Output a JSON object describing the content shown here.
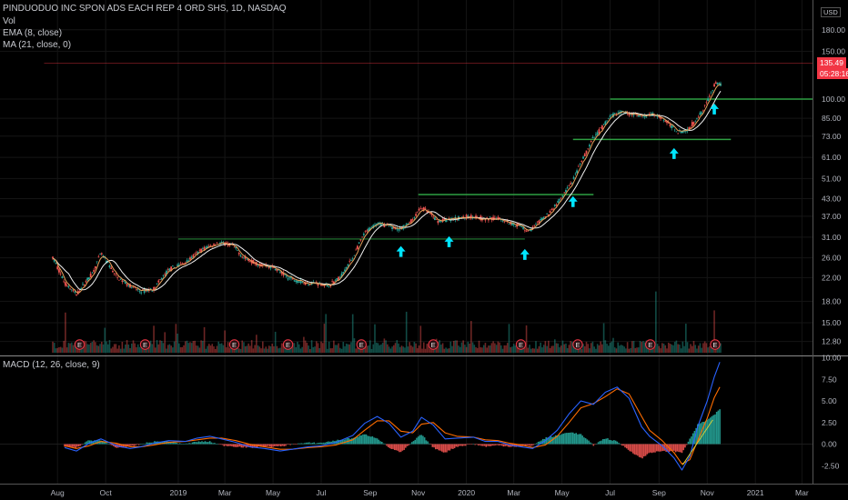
{
  "header": {
    "title": "PINDUODUO INC SPON ADS EACH REP 4 ORD SHS, 1D, NASDAQ",
    "vol_label": "Vol",
    "ema_label": "EMA (8, close)",
    "ma_label": "MA (21, close, 0)",
    "currency": "USD"
  },
  "price_badge": {
    "value": "135.49",
    "countdown": "05:28:16"
  },
  "macd_label": "MACD (12, 26, close, 9)",
  "colors": {
    "up": "#26a69a",
    "down": "#ef5350",
    "ema": "#e8a05a",
    "ma": "#f0f0f0",
    "macd": "#2962ff",
    "signal": "#ff6d00",
    "level": "#2ea043",
    "arrow": "#00e5ff",
    "badge": "#f23645",
    "trend": "#d4d038"
  },
  "chart_data": [
    {
      "type": "candlestick",
      "title": "PINDUODUO INC SPON ADS EACH REP 4 ORD SHS, 1D, NASDAQ",
      "y_scale": "log",
      "yticks": [
        "12.80",
        "15.00",
        "18.00",
        "22.00",
        "26.00",
        "31.00",
        "37.00",
        "43.00",
        "51.00",
        "61.00",
        "73.00",
        "85.00",
        "100.00",
        "150.00",
        "180.00"
      ],
      "xticks": [
        "Aug",
        "Oct",
        "2019",
        "Mar",
        "May",
        "Jul",
        "Sep",
        "Nov",
        "2020",
        "Mar",
        "May",
        "Jul",
        "Sep",
        "Nov",
        "2021",
        "Mar"
      ],
      "price_path": [
        [
          "2018-07-26",
          26
        ],
        [
          "2018-08-10",
          21
        ],
        [
          "2018-08-25",
          19
        ],
        [
          "2018-09-15",
          23
        ],
        [
          "2018-09-25",
          27
        ],
        [
          "2018-10-15",
          22
        ],
        [
          "2018-11-01",
          20.5
        ],
        [
          "2018-11-15",
          19.5
        ],
        [
          "2018-12-01",
          20
        ],
        [
          "2018-12-20",
          23.5
        ],
        [
          "2019-01-10",
          25
        ],
        [
          "2019-02-01",
          28
        ],
        [
          "2019-02-20",
          29.5
        ],
        [
          "2019-03-10",
          29
        ],
        [
          "2019-03-25",
          26
        ],
        [
          "2019-04-15",
          24.5
        ],
        [
          "2019-05-01",
          24
        ],
        [
          "2019-05-20",
          22
        ],
        [
          "2019-06-10",
          21
        ],
        [
          "2019-06-25",
          21
        ],
        [
          "2019-07-10",
          20.5
        ],
        [
          "2019-07-25",
          22
        ],
        [
          "2019-08-10",
          26
        ],
        [
          "2019-08-25",
          32
        ],
        [
          "2019-09-10",
          35
        ],
        [
          "2019-09-25",
          34
        ],
        [
          "2019-10-10",
          33
        ],
        [
          "2019-10-25",
          36
        ],
        [
          "2019-11-05",
          40
        ],
        [
          "2019-11-15",
          38
        ],
        [
          "2019-11-25",
          35.5
        ],
        [
          "2019-12-10",
          36
        ],
        [
          "2019-12-25",
          36.5
        ],
        [
          "2020-01-10",
          37
        ],
        [
          "2020-01-25",
          36
        ],
        [
          "2020-02-10",
          36.5
        ],
        [
          "2020-02-25",
          35
        ],
        [
          "2020-03-10",
          34
        ],
        [
          "2020-03-20",
          32.5
        ],
        [
          "2020-04-01",
          35
        ],
        [
          "2020-04-15",
          38
        ],
        [
          "2020-04-30",
          43
        ],
        [
          "2020-05-15",
          50
        ],
        [
          "2020-05-30",
          62
        ],
        [
          "2020-06-10",
          72
        ],
        [
          "2020-06-20",
          78
        ],
        [
          "2020-07-01",
          86
        ],
        [
          "2020-07-15",
          90
        ],
        [
          "2020-07-30",
          88
        ],
        [
          "2020-08-10",
          86
        ],
        [
          "2020-08-25",
          88
        ],
        [
          "2020-09-05",
          85
        ],
        [
          "2020-09-15",
          80
        ],
        [
          "2020-09-25",
          76
        ],
        [
          "2020-10-05",
          76
        ],
        [
          "2020-10-15",
          82
        ],
        [
          "2020-10-25",
          90
        ],
        [
          "2020-11-05",
          103
        ],
        [
          "2020-11-12",
          115
        ],
        [
          "2020-11-18",
          112
        ]
      ],
      "volume_event_markers": [
        "2018-08-29",
        "2018-11-20",
        "2019-03-13",
        "2019-05-20",
        "2019-08-21",
        "2019-11-20",
        "2020-03-10",
        "2020-05-21",
        "2020-08-21",
        "2020-11-11"
      ],
      "event_marker_label": "E",
      "horizontal_levels": [
        {
          "price": 30.5,
          "from": "2019-01-01",
          "to": "2020-03-15"
        },
        {
          "price": 44.5,
          "from": "2019-11-01",
          "to": "2020-06-10"
        },
        {
          "price": 71,
          "from": "2020-05-15",
          "to": "2020-12-01"
        },
        {
          "price": 100,
          "from": "2020-07-01",
          "to": "2021-04-30"
        },
        {
          "price": 135.49,
          "from": "2018-07-15",
          "to": "2021-04-30"
        }
      ],
      "arrows": [
        "2019-10-10",
        "2019-12-10",
        "2020-03-15",
        "2020-05-15",
        "2020-09-20",
        "2020-11-10"
      ],
      "last_price": 135.49
    },
    {
      "type": "line",
      "title": "MACD (12, 26, close, 9)",
      "yticks": [
        "10.00",
        "7.50",
        "5.00",
        "2.50",
        "0.00",
        "-2.50"
      ],
      "series": [
        {
          "name": "MACD",
          "points": [
            [
              "2018-08-10",
              -0.4
            ],
            [
              "2018-08-25",
              -0.8
            ],
            [
              "2018-09-10",
              0.1
            ],
            [
              "2018-09-25",
              0.6
            ],
            [
              "2018-10-15",
              -0.2
            ],
            [
              "2018-11-01",
              -0.5
            ],
            [
              "2018-11-15",
              -0.3
            ],
            [
              "2018-12-01",
              0.1
            ],
            [
              "2018-12-20",
              0.4
            ],
            [
              "2019-01-10",
              0.3
            ],
            [
              "2019-01-25",
              0.7
            ],
            [
              "2019-02-10",
              0.9
            ],
            [
              "2019-02-25",
              0.6
            ],
            [
              "2019-03-15",
              0.2
            ],
            [
              "2019-04-01",
              -0.3
            ],
            [
              "2019-04-20",
              -0.5
            ],
            [
              "2019-05-10",
              -0.8
            ],
            [
              "2019-05-25",
              -0.6
            ],
            [
              "2019-06-15",
              -0.3
            ],
            [
              "2019-07-01",
              -0.2
            ],
            [
              "2019-07-20",
              0.2
            ],
            [
              "2019-08-10",
              1.0
            ],
            [
              "2019-08-25",
              2.4
            ],
            [
              "2019-09-10",
              3.2
            ],
            [
              "2019-09-25",
              2.4
            ],
            [
              "2019-10-10",
              0.8
            ],
            [
              "2019-10-25",
              1.5
            ],
            [
              "2019-11-05",
              3.1
            ],
            [
              "2019-11-20",
              2.2
            ],
            [
              "2019-12-05",
              0.6
            ],
            [
              "2019-12-20",
              0.7
            ],
            [
              "2020-01-10",
              0.8
            ],
            [
              "2020-01-25",
              0.3
            ],
            [
              "2020-02-10",
              0.3
            ],
            [
              "2020-02-25",
              -0.1
            ],
            [
              "2020-03-10",
              -0.3
            ],
            [
              "2020-03-25",
              -0.5
            ],
            [
              "2020-04-10",
              0.4
            ],
            [
              "2020-04-25",
              1.6
            ],
            [
              "2020-05-10",
              3.5
            ],
            [
              "2020-05-25",
              5.0
            ],
            [
              "2020-06-10",
              4.6
            ],
            [
              "2020-06-25",
              6.0
            ],
            [
              "2020-07-10",
              6.6
            ],
            [
              "2020-07-25",
              5.3
            ],
            [
              "2020-08-10",
              2.0
            ],
            [
              "2020-08-20",
              0.9
            ],
            [
              "2020-09-05",
              -0.2
            ],
            [
              "2020-09-20",
              -1.6
            ],
            [
              "2020-09-30",
              -3.0
            ],
            [
              "2020-10-10",
              -1.4
            ],
            [
              "2020-10-20",
              2.0
            ],
            [
              "2020-11-01",
              5.0
            ],
            [
              "2020-11-10",
              7.8
            ],
            [
              "2020-11-17",
              9.5
            ]
          ]
        },
        {
          "name": "Signal",
          "points": [
            [
              "2018-08-10",
              -0.2
            ],
            [
              "2018-08-25",
              -0.5
            ],
            [
              "2018-09-10",
              -0.2
            ],
            [
              "2018-09-25",
              0.3
            ],
            [
              "2018-10-15",
              0.1
            ],
            [
              "2018-11-01",
              -0.3
            ],
            [
              "2018-11-15",
              -0.3
            ],
            [
              "2018-12-01",
              -0.1
            ],
            [
              "2018-12-20",
              0.2
            ],
            [
              "2019-01-10",
              0.3
            ],
            [
              "2019-01-25",
              0.5
            ],
            [
              "2019-02-10",
              0.7
            ],
            [
              "2019-02-25",
              0.7
            ],
            [
              "2019-03-15",
              0.4
            ],
            [
              "2019-04-01",
              0.0
            ],
            [
              "2019-04-20",
              -0.3
            ],
            [
              "2019-05-10",
              -0.6
            ],
            [
              "2019-05-25",
              -0.6
            ],
            [
              "2019-06-15",
              -0.4
            ],
            [
              "2019-07-01",
              -0.3
            ],
            [
              "2019-07-20",
              -0.1
            ],
            [
              "2019-08-10",
              0.5
            ],
            [
              "2019-08-25",
              1.6
            ],
            [
              "2019-09-10",
              2.7
            ],
            [
              "2019-09-25",
              2.7
            ],
            [
              "2019-10-10",
              1.5
            ],
            [
              "2019-10-25",
              1.3
            ],
            [
              "2019-11-05",
              2.3
            ],
            [
              "2019-11-20",
              2.5
            ],
            [
              "2019-12-05",
              1.3
            ],
            [
              "2019-12-20",
              0.9
            ],
            [
              "2020-01-10",
              0.8
            ],
            [
              "2020-01-25",
              0.5
            ],
            [
              "2020-02-10",
              0.4
            ],
            [
              "2020-02-25",
              0.1
            ],
            [
              "2020-03-10",
              -0.1
            ],
            [
              "2020-03-25",
              -0.4
            ],
            [
              "2020-04-10",
              -0.1
            ],
            [
              "2020-04-25",
              0.9
            ],
            [
              "2020-05-10",
              2.5
            ],
            [
              "2020-05-25",
              4.2
            ],
            [
              "2020-06-10",
              4.7
            ],
            [
              "2020-06-25",
              5.5
            ],
            [
              "2020-07-10",
              6.4
            ],
            [
              "2020-07-25",
              5.8
            ],
            [
              "2020-08-10",
              3.2
            ],
            [
              "2020-08-20",
              1.6
            ],
            [
              "2020-09-05",
              0.4
            ],
            [
              "2020-09-20",
              -1.0
            ],
            [
              "2020-09-30",
              -2.3
            ],
            [
              "2020-10-10",
              -1.8
            ],
            [
              "2020-10-20",
              0.4
            ],
            [
              "2020-11-01",
              3.0
            ],
            [
              "2020-11-10",
              5.4
            ],
            [
              "2020-11-17",
              6.6
            ]
          ]
        }
      ],
      "trend_line": [
        [
          "2020-10-01",
          -2.4
        ],
        [
          "2020-11-08",
          2.8
        ]
      ]
    }
  ]
}
